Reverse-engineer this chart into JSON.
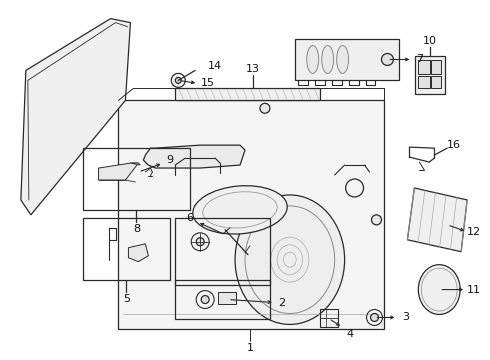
{
  "bg_color": "#ffffff",
  "line_color": "#2a2a2a",
  "fig_width": 4.9,
  "fig_height": 3.6,
  "dpi": 100
}
